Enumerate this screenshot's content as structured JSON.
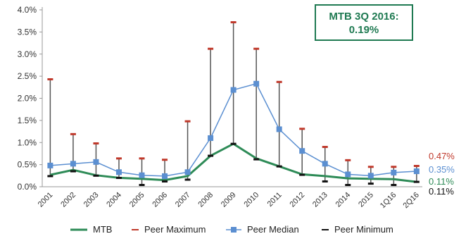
{
  "callout": {
    "line1": "MTB 3Q 2016:",
    "line2": "0.19%"
  },
  "colors": {
    "mtb": "#2e8b57",
    "peer_max": "#c0392b",
    "peer_median": "#5b8fd1",
    "peer_min": "#111111",
    "range_line": "#555555"
  },
  "chart_data": {
    "type": "line",
    "categories": [
      "2001",
      "2002",
      "2003",
      "2004",
      "2005",
      "2006",
      "2007",
      "2008",
      "2009",
      "2010",
      "2011",
      "2012",
      "2013",
      "2014",
      "2015",
      "1Q16",
      "2Q16"
    ],
    "ylim": [
      0,
      4.0
    ],
    "yticks": [
      "0.0%",
      "0.5%",
      "1.0%",
      "1.5%",
      "2.0%",
      "2.5%",
      "3.0%",
      "3.5%",
      "4.0%"
    ],
    "grid": false,
    "legend_position": "bottom",
    "series": [
      {
        "name": "MTB",
        "values": [
          0.27,
          0.38,
          0.26,
          0.2,
          0.18,
          0.15,
          0.24,
          0.7,
          0.97,
          0.64,
          0.46,
          0.28,
          0.24,
          0.19,
          0.18,
          0.17,
          0.11
        ]
      },
      {
        "name": "Peer Maximum",
        "values": [
          2.43,
          1.19,
          0.98,
          0.64,
          0.64,
          0.61,
          1.48,
          3.12,
          3.72,
          3.12,
          2.37,
          1.31,
          0.9,
          0.6,
          0.45,
          0.45,
          0.47
        ]
      },
      {
        "name": "Peer Median",
        "values": [
          0.48,
          0.52,
          0.56,
          0.33,
          0.26,
          0.24,
          0.33,
          1.1,
          2.19,
          2.33,
          1.3,
          0.81,
          0.52,
          0.28,
          0.25,
          0.32,
          0.35
        ]
      },
      {
        "name": "Peer Minimum",
        "values": [
          0.24,
          0.35,
          0.25,
          0.2,
          0.04,
          0.12,
          0.16,
          0.7,
          0.97,
          0.62,
          0.46,
          0.27,
          0.12,
          0.04,
          0.07,
          0.04,
          0.11
        ]
      }
    ],
    "end_labels": [
      {
        "text": "0.47%",
        "color": "#c0392b"
      },
      {
        "text": "0.35%",
        "color": "#5b8fd1"
      },
      {
        "text": "0.11%",
        "color": "#2e8b57"
      },
      {
        "text": "0.11%",
        "color": "#111111"
      }
    ]
  },
  "legend": [
    {
      "label": "MTB",
      "key": "mtb"
    },
    {
      "label": "Peer Maximum",
      "key": "peer_max"
    },
    {
      "label": "Peer Median",
      "key": "peer_median"
    },
    {
      "label": "Peer Minimum",
      "key": "peer_min"
    }
  ]
}
